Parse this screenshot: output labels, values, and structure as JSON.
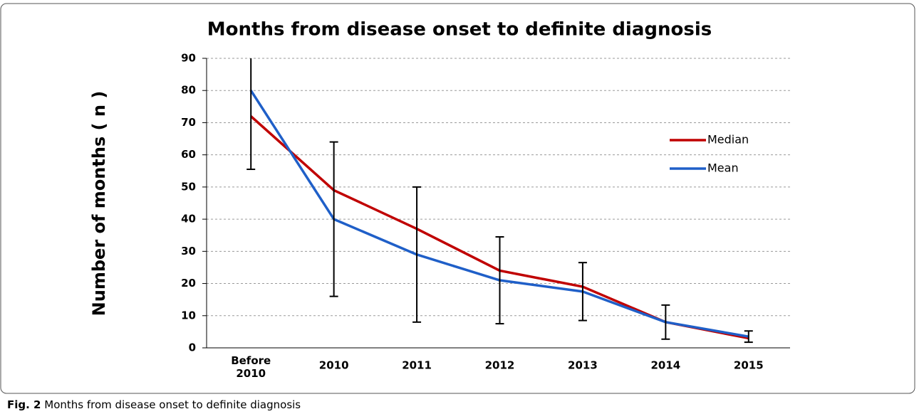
{
  "chart_data": {
    "type": "line",
    "title": "Months from disease onset to definite diagnosis",
    "y_label": "Number of months ( n )",
    "caption_label": "Fig. 2",
    "caption_text": "Months from disease onset to definite diagnosis",
    "categories": [
      "Before 2010",
      "2010",
      "2011",
      "2012",
      "2013",
      "2014",
      "2015"
    ],
    "series": [
      {
        "name": "Median",
        "color": "#c00000",
        "values": [
          72,
          49,
          37,
          24,
          19,
          8,
          3
        ]
      },
      {
        "name": "Mean",
        "color": "#1f5fc8",
        "values": [
          80,
          40,
          29,
          21,
          17.5,
          8,
          3.5
        ],
        "errors": [
          24.5,
          24,
          21,
          13.5,
          9,
          5.3,
          1.75
        ]
      }
    ],
    "ylim": [
      0,
      90
    ],
    "yticks": [
      0,
      10,
      20,
      30,
      40,
      50,
      60,
      70,
      80,
      90
    ],
    "grid": true
  }
}
